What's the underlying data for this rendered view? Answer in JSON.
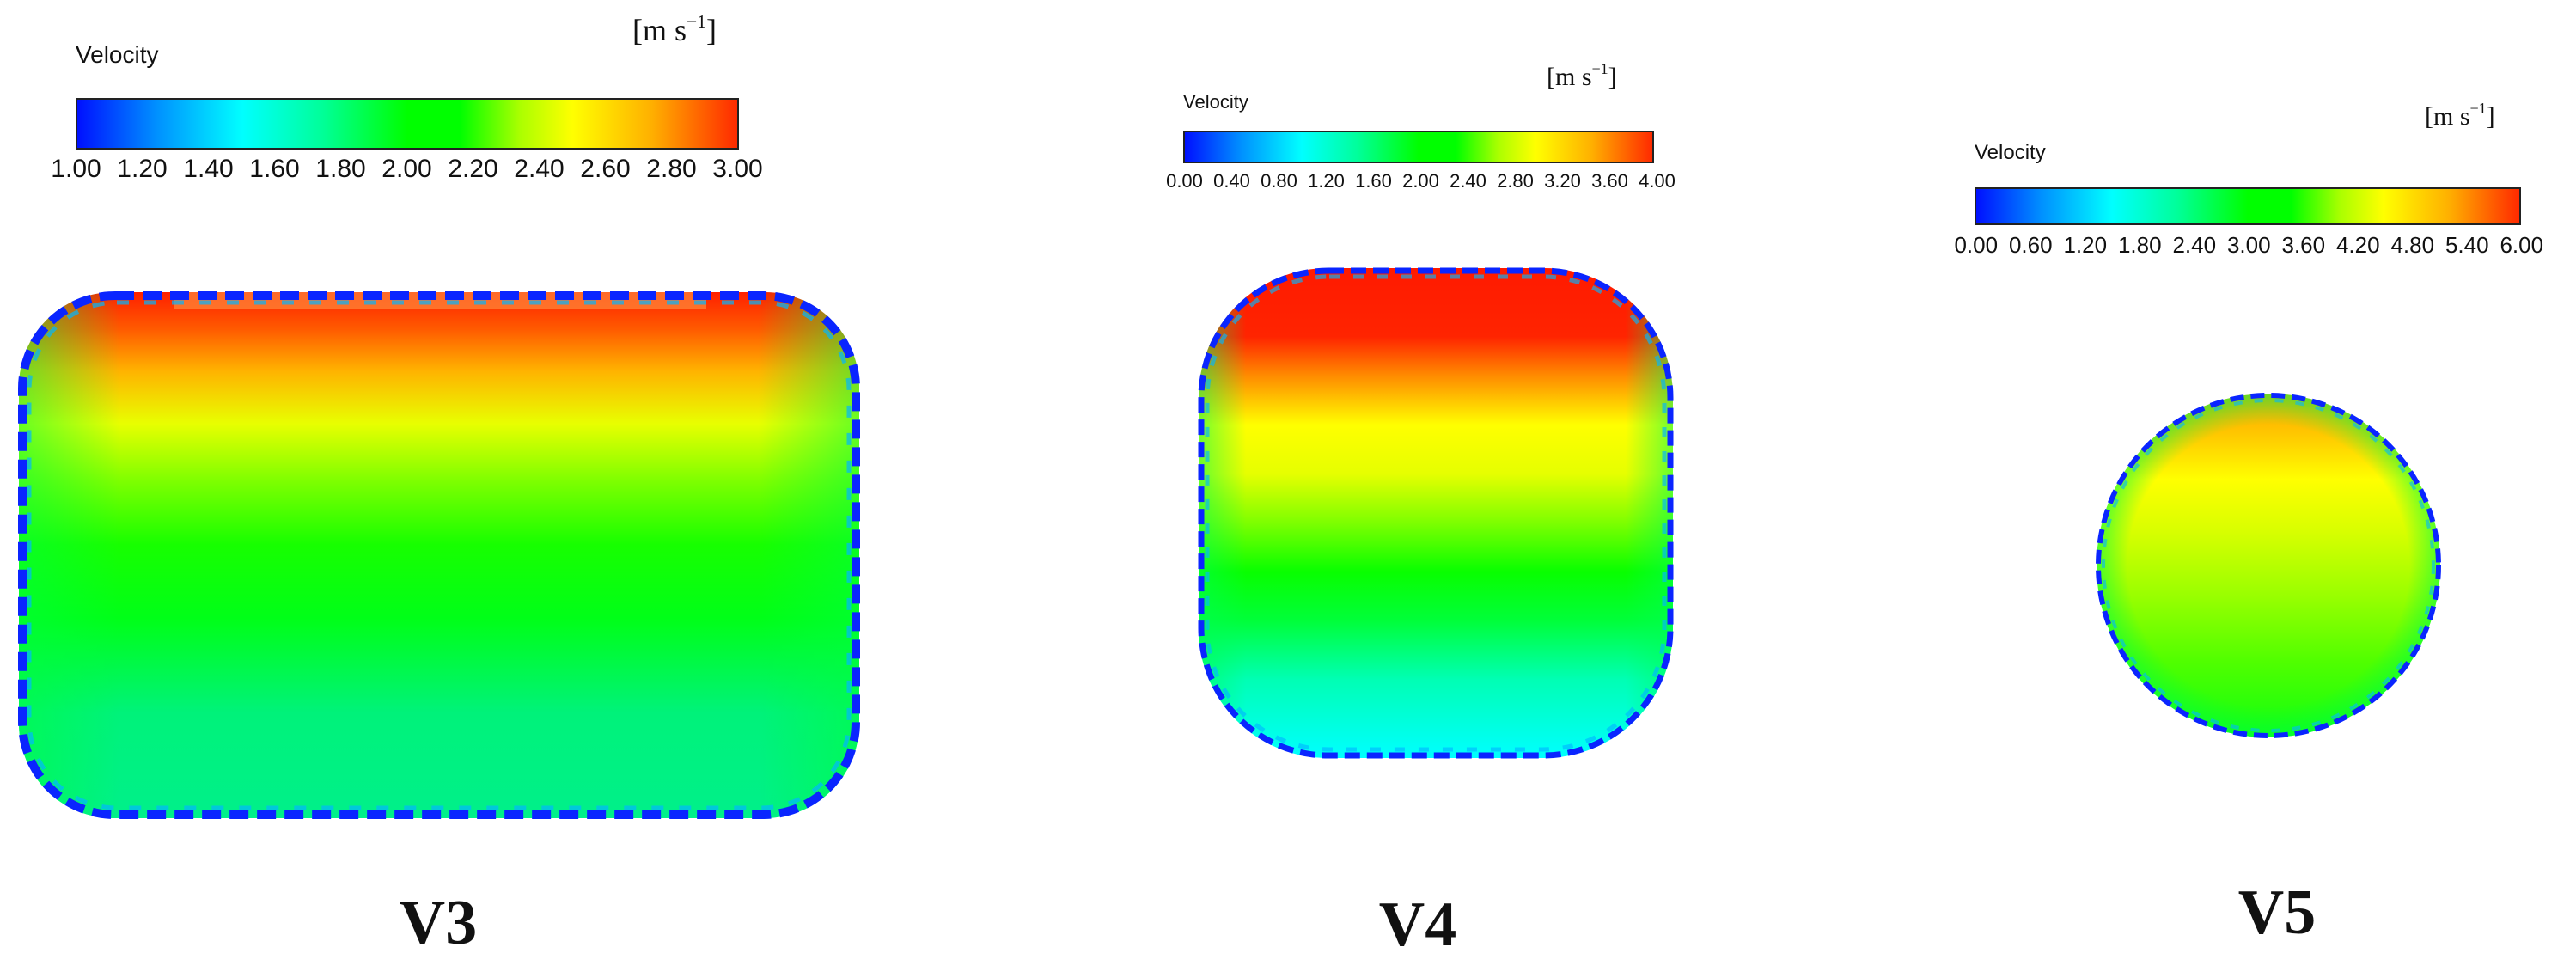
{
  "panels": [
    {
      "id": "V3",
      "legend_title": "Velocity",
      "unit_base": "[m s",
      "unit_exp": "−1",
      "unit_close": "]",
      "ticks": [
        "1.00",
        "1.20",
        "1.40",
        "1.60",
        "1.80",
        "2.00",
        "2.20",
        "2.40",
        "2.60",
        "2.80",
        "3.00"
      ],
      "caption": "V3",
      "shape": "rounded-rectangle"
    },
    {
      "id": "V4",
      "legend_title": "Velocity",
      "unit_base": "[m s",
      "unit_exp": "−1",
      "unit_close": "]",
      "ticks": [
        "0.00",
        "0.40",
        "0.80",
        "1.20",
        "1.60",
        "2.00",
        "2.40",
        "2.80",
        "3.20",
        "3.60",
        "4.00"
      ],
      "caption": "V4",
      "shape": "rounded-square"
    },
    {
      "id": "V5",
      "legend_title": "Velocity",
      "unit_base": "[m s",
      "unit_exp": "−1",
      "unit_close": "]",
      "ticks": [
        "0.00",
        "0.60",
        "1.20",
        "1.80",
        "2.40",
        "3.00",
        "3.60",
        "4.20",
        "4.80",
        "5.40",
        "6.00"
      ],
      "caption": "V5",
      "shape": "circle"
    }
  ],
  "colormap": [
    "#0010ff",
    "#00ffff",
    "#00ff00",
    "#ffff00",
    "#ff2a00"
  ]
}
